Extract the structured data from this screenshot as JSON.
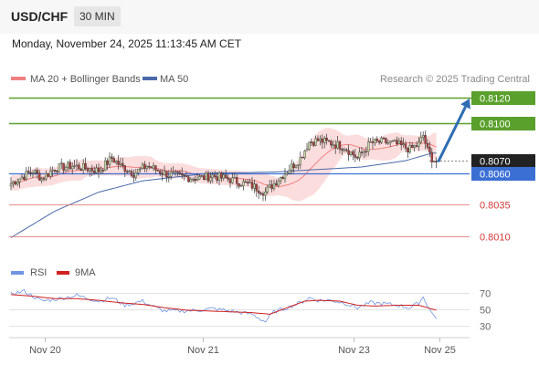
{
  "header": {
    "pair": "USD/CHF",
    "timeframe": "30 MIN",
    "datetime": "Monday, November 24, 2025 11:13:45 AM CET"
  },
  "legend": {
    "ma20": "MA 20 + Bollinger Bands",
    "ma50": "MA 50",
    "credit": "Research © 2025 Trading Central",
    "rsi": "RSI",
    "rsi_ma": "9MA"
  },
  "colors": {
    "up_candle": "#c8dcaa",
    "down_candle": "#b04040",
    "wick": "#333333",
    "bollinger_fill": "#fbd7d7",
    "ma20": "#f08080",
    "ma50": "#4a6aa8",
    "resistance": "#5aa02c",
    "support": "#e06a6a",
    "pivot": "#3b6fd4",
    "last_price": "#222222",
    "forecast_arrow": "#2f6db3",
    "rsi": "#6f95e0",
    "rsi_ma": "#d02020"
  },
  "chart_data": [
    {
      "type": "candlestick",
      "title": "USD/CHF",
      "ylim": [
        0.8,
        0.8136
      ],
      "x_ticks": [
        "Nov 20",
        "Nov 21",
        "Nov 23",
        "Nov 25"
      ],
      "levels": [
        {
          "value": 0.812,
          "label": "0.8120",
          "kind": "resistance"
        },
        {
          "value": 0.81,
          "label": "0.8100",
          "kind": "resistance"
        },
        {
          "value": 0.807,
          "label": "0.8070",
          "kind": "last"
        },
        {
          "value": 0.806,
          "label": "0.8060",
          "kind": "pivot"
        },
        {
          "value": 0.8035,
          "label": "0.8035",
          "kind": "support"
        },
        {
          "value": 0.801,
          "label": "0.8010",
          "kind": "support"
        }
      ],
      "forecast": {
        "from": 0.8069,
        "to": 0.812,
        "direction": "up"
      },
      "ma50_anchor": [
        [
          0,
          0.8009
        ],
        [
          20,
          0.803
        ],
        [
          40,
          0.8045
        ],
        [
          60,
          0.8054
        ],
        [
          90,
          0.806
        ],
        [
          120,
          0.8061
        ],
        [
          140,
          0.8063
        ],
        [
          160,
          0.8065
        ],
        [
          180,
          0.807
        ],
        [
          192,
          0.8076
        ]
      ],
      "close_anchor": [
        [
          0,
          0.8052
        ],
        [
          6,
          0.8058
        ],
        [
          10,
          0.8062
        ],
        [
          14,
          0.8056
        ],
        [
          20,
          0.8064
        ],
        [
          28,
          0.8066
        ],
        [
          34,
          0.8064
        ],
        [
          40,
          0.8062
        ],
        [
          46,
          0.8072
        ],
        [
          50,
          0.8066
        ],
        [
          56,
          0.806
        ],
        [
          62,
          0.8066
        ],
        [
          70,
          0.806
        ],
        [
          78,
          0.8057
        ],
        [
          86,
          0.8056
        ],
        [
          92,
          0.8058
        ],
        [
          100,
          0.8055
        ],
        [
          110,
          0.805
        ],
        [
          116,
          0.8045
        ],
        [
          120,
          0.8052
        ],
        [
          126,
          0.8062
        ],
        [
          132,
          0.8072
        ],
        [
          136,
          0.8085
        ],
        [
          140,
          0.8086
        ],
        [
          146,
          0.8084
        ],
        [
          152,
          0.8081
        ],
        [
          158,
          0.8072
        ],
        [
          164,
          0.8084
        ],
        [
          170,
          0.8085
        ],
        [
          176,
          0.8083
        ],
        [
          182,
          0.8079
        ],
        [
          186,
          0.8083
        ],
        [
          188,
          0.809
        ],
        [
          190,
          0.8078
        ],
        [
          192,
          0.8072
        ],
        [
          194,
          0.8069
        ]
      ]
    },
    {
      "type": "line",
      "title": "RSI",
      "series": [
        {
          "name": "RSI"
        },
        {
          "name": "9MA"
        }
      ],
      "ylim": [
        25,
        75
      ],
      "y_ticks": [
        70,
        50,
        30
      ],
      "rsi_anchor": [
        [
          0,
          69
        ],
        [
          6,
          72
        ],
        [
          14,
          60
        ],
        [
          22,
          63
        ],
        [
          30,
          67
        ],
        [
          40,
          60
        ],
        [
          46,
          64
        ],
        [
          52,
          55
        ],
        [
          60,
          60
        ],
        [
          66,
          52
        ],
        [
          70,
          48
        ],
        [
          78,
          48
        ],
        [
          86,
          49
        ],
        [
          92,
          51
        ],
        [
          100,
          48
        ],
        [
          110,
          44
        ],
        [
          116,
          35
        ],
        [
          120,
          47
        ],
        [
          126,
          52
        ],
        [
          132,
          58
        ],
        [
          136,
          64
        ],
        [
          140,
          61
        ],
        [
          146,
          61
        ],
        [
          152,
          58
        ],
        [
          158,
          52
        ],
        [
          164,
          58
        ],
        [
          170,
          57
        ],
        [
          176,
          55
        ],
        [
          182,
          52
        ],
        [
          186,
          58
        ],
        [
          188,
          65
        ],
        [
          190,
          55
        ],
        [
          192,
          45
        ],
        [
          194,
          40
        ]
      ],
      "ma_anchor": [
        [
          0,
          68
        ],
        [
          10,
          66
        ],
        [
          20,
          63
        ],
        [
          30,
          63
        ],
        [
          40,
          61
        ],
        [
          50,
          58
        ],
        [
          60,
          56
        ],
        [
          70,
          52
        ],
        [
          80,
          49
        ],
        [
          90,
          48
        ],
        [
          100,
          47
        ],
        [
          110,
          46
        ],
        [
          118,
          44
        ],
        [
          126,
          52
        ],
        [
          134,
          60
        ],
        [
          140,
          61
        ],
        [
          150,
          60
        ],
        [
          158,
          55
        ],
        [
          166,
          54
        ],
        [
          176,
          55
        ],
        [
          186,
          55
        ],
        [
          194,
          49
        ]
      ]
    }
  ]
}
